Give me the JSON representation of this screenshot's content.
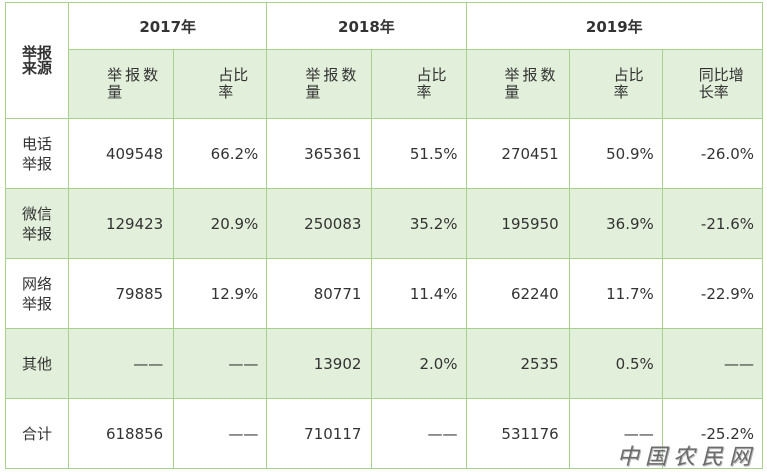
{
  "table": {
    "corner_label": "举报来源",
    "years": [
      "2017年",
      "2018年",
      "2019年"
    ],
    "sub_headers": {
      "count": "举报数量",
      "ratio": "占比率",
      "yoy": "同比增长率"
    },
    "rows": [
      {
        "source": "电话举报",
        "c2017": "409548",
        "r2017": "66.2%",
        "c2018": "365361",
        "r2018": "51.5%",
        "c2019": "270451",
        "r2019": "50.9%",
        "yoy": "-26.0%"
      },
      {
        "source": "微信举报",
        "c2017": "129423",
        "r2017": "20.9%",
        "c2018": "250083",
        "r2018": "35.2%",
        "c2019": "195950",
        "r2019": "36.9%",
        "yoy": "-21.6%"
      },
      {
        "source": "网络举报",
        "c2017": "79885",
        "r2017": "12.9%",
        "c2018": "80771",
        "r2018": "11.4%",
        "c2019": "62240",
        "r2019": "11.7%",
        "yoy": "-22.9%"
      },
      {
        "source": "其他",
        "c2017": "——",
        "r2017": "——",
        "c2018": "13902",
        "r2018": "2.0%",
        "c2019": "2535",
        "r2019": "0.5%",
        "yoy": "——"
      },
      {
        "source": "合计",
        "c2017": "618856",
        "r2017": "——",
        "c2018": "710117",
        "r2018": "——",
        "c2019": "531176",
        "r2019": "——",
        "yoy": "-25.2%"
      }
    ]
  },
  "watermark": "中国农民网"
}
